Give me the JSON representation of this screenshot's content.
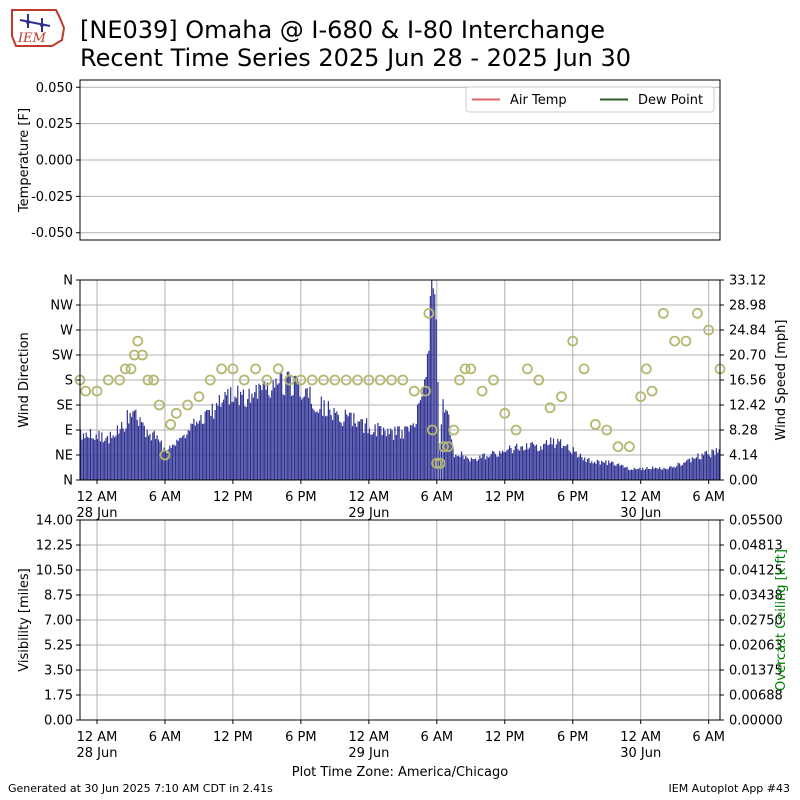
{
  "header": {
    "title_line1": "[NE039] Omaha @ I-680 & I-80 Interchange",
    "title_line2": "Recent Time Series 2025 Jun 28 - 2025 Jun 30",
    "logo_text": "IEM"
  },
  "footer": {
    "generated": "Generated at 30 Jun 2025 7:10 AM CDT in 2.41s",
    "app": "IEM Autoplot App #43"
  },
  "colors": {
    "air_temp": "#e06666",
    "dew_point": "#2d5a27",
    "wind_speed_bar": "#2e3192",
    "wind_dir_marker": "#b5b870",
    "ceiling_label": "#008000",
    "grid": "#b0b0b0"
  },
  "chart_data": [
    {
      "type": "line",
      "ylabel": "Temperature [F]",
      "ylim": [
        -0.055,
        0.055
      ],
      "yticks": [
        "0.050",
        "0.025",
        "0.000",
        "-0.025",
        "-0.050"
      ],
      "ytick_values": [
        0.05,
        0.025,
        0.0,
        -0.025,
        -0.05
      ],
      "grid": true,
      "legend_placement": "top-right",
      "series": [
        {
          "name": "Air Temp",
          "values": []
        },
        {
          "name": "Dew Point",
          "values": []
        }
      ]
    },
    {
      "type": "bar",
      "ylabel": "Wind Direction",
      "y2label": "Wind Speed [mph]",
      "ylim": [
        0,
        360
      ],
      "y2lim": [
        0,
        33.12
      ],
      "yticks": [
        "N",
        "NW",
        "W",
        "SW",
        "S",
        "SE",
        "E",
        "NE",
        "N"
      ],
      "ytick_values": [
        360,
        315,
        270,
        225,
        180,
        135,
        90,
        45,
        0
      ],
      "y2ticks": [
        "33.12",
        "28.98",
        "24.84",
        "20.70",
        "16.56",
        "12.42",
        "8.28",
        "4.14",
        "0.00"
      ],
      "y2tick_values": [
        33.12,
        28.98,
        24.84,
        20.7,
        16.56,
        12.42,
        8.28,
        4.14,
        0
      ],
      "xlim_hours": [
        -1.5,
        55
      ],
      "xticks": [
        "12 AM",
        "6 AM",
        "12 PM",
        "6 PM",
        "12 AM",
        "6 AM",
        "12 PM",
        "6 PM",
        "12 AM",
        "6 AM"
      ],
      "xtick_hours": [
        0,
        6,
        12,
        18,
        24,
        30,
        36,
        42,
        48,
        54
      ],
      "xdate_labels": [
        {
          "label": "28 Jun",
          "hour": 0
        },
        {
          "label": "29 Jun",
          "hour": 24
        },
        {
          "label": "30 Jun",
          "hour": 48
        }
      ],
      "grid": true,
      "wind_speed_mph": {
        "hours": [
          -1.5,
          0,
          1,
          2,
          3,
          4,
          5,
          6,
          7,
          8,
          9,
          10,
          11,
          12,
          13,
          14,
          15,
          16,
          17,
          18,
          19,
          20,
          21,
          22,
          23,
          24,
          25,
          26,
          27,
          28,
          29,
          29.5,
          29.9,
          30.2,
          30.5,
          31,
          31.5,
          32,
          33,
          34,
          35,
          36,
          37,
          38,
          39,
          40,
          41,
          42,
          43,
          44,
          45,
          46,
          47,
          48,
          49,
          50,
          51,
          52,
          53,
          54,
          55
        ],
        "values": [
          8.0,
          7.5,
          7.2,
          8.5,
          11.5,
          9.0,
          7.5,
          5.0,
          6.5,
          8.5,
          11.0,
          12.0,
          13.0,
          14.0,
          14.5,
          15.5,
          16.5,
          16.8,
          16.0,
          15.0,
          13.5,
          12.5,
          11.5,
          10.5,
          10.0,
          9.0,
          8.5,
          8.0,
          8.0,
          9.5,
          18.0,
          31.0,
          26.0,
          5.5,
          14.0,
          10.0,
          4.5,
          4.5,
          3.5,
          4.0,
          4.5,
          5.0,
          5.5,
          6.0,
          5.5,
          6.5,
          6.0,
          5.0,
          3.5,
          3.0,
          3.0,
          2.5,
          2.0,
          2.0,
          2.0,
          2.0,
          2.5,
          3.0,
          4.0,
          4.5,
          5.0
        ]
      },
      "wind_direction_deg": {
        "hours": [
          -1.5,
          -1,
          0,
          1,
          2,
          2.5,
          3,
          3.3,
          3.6,
          4,
          4.5,
          5,
          5.5,
          6,
          6.5,
          7,
          8,
          9,
          10,
          11,
          12,
          13,
          14,
          15,
          16,
          17,
          18,
          19,
          20,
          21,
          22,
          23,
          24,
          25,
          26,
          27,
          28,
          29,
          29.3,
          29.6,
          30,
          30.3,
          30.6,
          31,
          31.5,
          32,
          32.5,
          33,
          34,
          35,
          36,
          37,
          38,
          39,
          40,
          41,
          42,
          43,
          44,
          45,
          46,
          47,
          48,
          48.5,
          49,
          50,
          51,
          52,
          53,
          54,
          55
        ],
        "values": [
          180,
          160,
          160,
          180,
          180,
          200,
          200,
          225,
          250,
          225,
          180,
          180,
          135,
          45,
          100,
          120,
          135,
          150,
          180,
          200,
          200,
          180,
          200,
          180,
          200,
          180,
          180,
          180,
          180,
          180,
          180,
          180,
          180,
          180,
          180,
          180,
          160,
          160,
          300,
          90,
          30,
          30,
          60,
          60,
          90,
          180,
          200,
          200,
          160,
          180,
          120,
          90,
          200,
          180,
          130,
          150,
          250,
          200,
          100,
          90,
          60,
          60,
          150,
          200,
          160,
          300,
          250,
          250,
          300,
          270,
          200
        ]
      }
    },
    {
      "type": "line",
      "ylabel": "Visibility [miles]",
      "y2label": "Overcast Ceiling [k ft]",
      "ylim": [
        0,
        14
      ],
      "y2lim": [
        0,
        0.055
      ],
      "yticks": [
        "14.00",
        "12.25",
        "10.50",
        "8.75",
        "7.00",
        "5.25",
        "3.50",
        "1.75",
        "0.00"
      ],
      "ytick_values": [
        14,
        12.25,
        10.5,
        8.75,
        7,
        5.25,
        3.5,
        1.75,
        0
      ],
      "y2ticks": [
        "0.05500",
        "0.04813",
        "0.04125",
        "0.03438",
        "0.02750",
        "0.02063",
        "0.01375",
        "0.00688",
        "0.00000"
      ],
      "y2tick_values": [
        0.055,
        0.048125,
        0.04125,
        0.034375,
        0.0275,
        0.020625,
        0.01375,
        0.006875,
        0
      ],
      "xlim_hours": [
        -1.5,
        55
      ],
      "xticks": [
        "12 AM",
        "6 AM",
        "12 PM",
        "6 PM",
        "12 AM",
        "6 AM",
        "12 PM",
        "6 PM",
        "12 AM",
        "6 AM"
      ],
      "xtick_hours": [
        0,
        6,
        12,
        18,
        24,
        30,
        36,
        42,
        48,
        54
      ],
      "xdate_labels": [
        {
          "label": "28 Jun",
          "hour": 0
        },
        {
          "label": "29 Jun",
          "hour": 24
        },
        {
          "label": "30 Jun",
          "hour": 48
        }
      ],
      "xlabel": "Plot Time Zone: America/Chicago",
      "grid": true,
      "series": []
    }
  ]
}
